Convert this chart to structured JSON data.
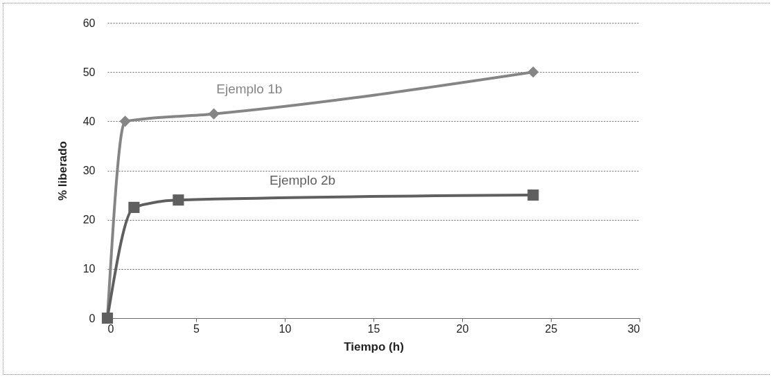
{
  "chart_data": {
    "type": "line",
    "xlabel": "Tiempo (h)",
    "ylabel": "% liberado",
    "xlim": [
      0,
      30
    ],
    "xticks": [
      0,
      5,
      10,
      15,
      20,
      25,
      30
    ],
    "ylim": [
      0,
      60
    ],
    "yticks": [
      0,
      10,
      20,
      30,
      40,
      50,
      60
    ],
    "grid": "y",
    "line_style": "solid",
    "series": [
      {
        "name": "Ejemplo 1b",
        "color": "#858585",
        "marker": "diamond",
        "x": [
          0,
          1,
          6,
          24
        ],
        "values": [
          0,
          40,
          41.5,
          50
        ]
      },
      {
        "name": "Ejemplo 2b",
        "color": "#5f5f5f",
        "marker": "square",
        "x": [
          0,
          1.5,
          4,
          24
        ],
        "values": [
          0,
          22.5,
          24,
          25
        ]
      }
    ]
  }
}
